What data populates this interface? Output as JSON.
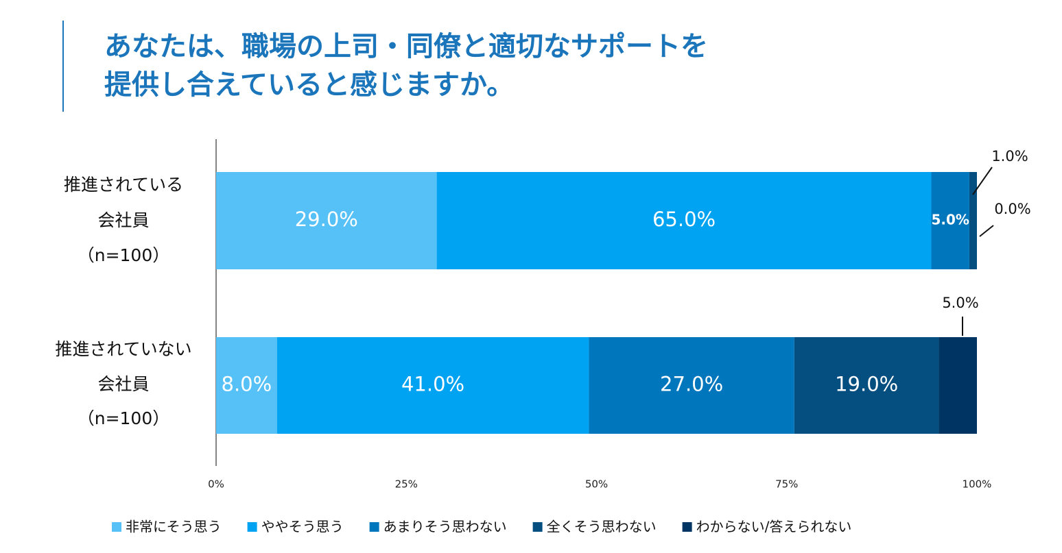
{
  "chart_data": {
    "type": "stacked-bar-horizontal",
    "title": [
      "あなたは、職場の上司・同僚と適切なサポートを",
      "提供し合えていると感じますか。"
    ],
    "categories": [
      [
        "推進されている",
        "会社員",
        "（n=100）"
      ],
      [
        "推進されていない",
        "会社員",
        "（n=100）"
      ]
    ],
    "series": [
      {
        "name": "非常にそう思う",
        "color": "#55c1f7",
        "values": [
          29,
          8
        ],
        "value_labels": [
          "29.0%",
          "8.0%"
        ]
      },
      {
        "name": "ややそう思う",
        "color": "#00a2f2",
        "values": [
          65,
          41
        ],
        "value_labels": [
          "65.0%",
          "41.0%"
        ]
      },
      {
        "name": "あまりそう思わない",
        "color": "#0077bd",
        "values": [
          5,
          27
        ],
        "value_labels": [
          "5.0%",
          "27.0%"
        ]
      },
      {
        "name": "全くそう思わない",
        "color": "#054e80",
        "values": [
          1,
          19
        ],
        "value_labels": [
          "1.0%",
          "19.0%"
        ]
      },
      {
        "name": "わからない/答えられない",
        "color": "#003462",
        "values": [
          0,
          5
        ],
        "value_labels": [
          "0.0%",
          "5.0%"
        ]
      }
    ],
    "xlim": [
      0,
      100
    ],
    "xticks": [
      {
        "value": 0,
        "label": "0%"
      },
      {
        "value": 25,
        "label": "25%"
      },
      {
        "value": 50,
        "label": "50%"
      },
      {
        "value": 75,
        "label": "75%"
      },
      {
        "value": 100,
        "label": "100%"
      }
    ],
    "legend": "bottom"
  }
}
